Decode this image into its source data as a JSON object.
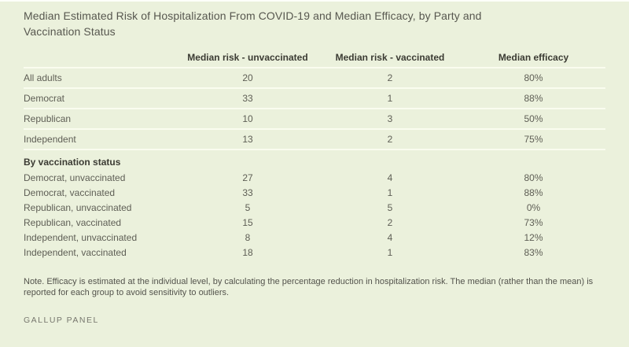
{
  "page": {
    "title": "Median Estimated Risk of Hospitalization From COVID-19 and Median Efficacy, by Party and Vaccination Status",
    "note": "Note. Efficacy is estimated at the individual level, by calculating the percentage reduction in hospitalization risk. The median (rather than the mean) is reported for each group to avoid sensitivity to outliers.",
    "source": "GALLUP PANEL"
  },
  "colors": {
    "background": "#EBF1DC",
    "separator": "#FAFCEF",
    "title_text": "#57574F",
    "header_text": "#3B3B33",
    "body_text": "#5E5E55",
    "note_text": "#53534C",
    "source_text": "#77776E"
  },
  "chart_data": {
    "type": "table",
    "title": "Median Estimated Risk of Hospitalization From COVID-19 and Median Efficacy, by Party and Vaccination Status",
    "columns": [
      "",
      "Median risk - unvaccinated",
      "Median risk - vaccinated",
      "Median efficacy"
    ],
    "sections": [
      {
        "header": "",
        "rows": [
          [
            "All adults",
            20,
            2,
            "80%"
          ],
          [
            "Democrat",
            33,
            1,
            "88%"
          ],
          [
            "Republican",
            10,
            3,
            "50%"
          ],
          [
            "Independent",
            13,
            2,
            "75%"
          ]
        ]
      },
      {
        "header": "By vaccination status",
        "rows": [
          [
            "Democrat, unvaccinated",
            27,
            4,
            "80%"
          ],
          [
            "Democrat, vaccinated",
            33,
            1,
            "88%"
          ],
          [
            "Republican, unvaccinated",
            5,
            5,
            "0%"
          ],
          [
            "Republican, vaccinated",
            15,
            2,
            "73%"
          ],
          [
            "Independent, unvaccinated",
            8,
            4,
            "12%"
          ],
          [
            "Independent, vaccinated",
            18,
            1,
            "83%"
          ]
        ]
      }
    ],
    "note": "Note. Efficacy is estimated at the individual level, by calculating the percentage reduction in hospitalization risk. The median (rather than the mean) is reported for each group to avoid sensitivity to outliers.",
    "source": "GALLUP PANEL",
    "layout": {
      "grid": "off",
      "legend": "none"
    }
  }
}
